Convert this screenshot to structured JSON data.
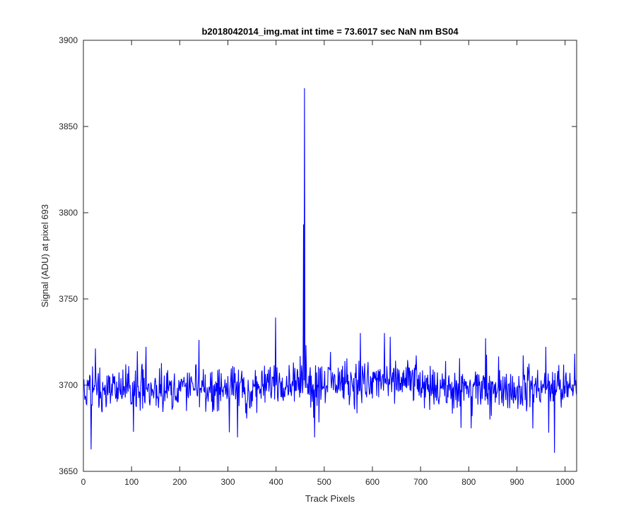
{
  "chart_data": {
    "type": "line",
    "title": "b2018042014_img.mat int time = 73.6017 sec  NaN nm BS04",
    "xlabel": "Track Pixels",
    "ylabel": "Signal (ADU) at pixel 693",
    "xlim": [
      0,
      1024
    ],
    "ylim": [
      3650,
      3900
    ],
    "xticks": [
      "0",
      "100",
      "200",
      "300",
      "400",
      "500",
      "600",
      "700",
      "800",
      "900",
      "1000"
    ],
    "yticks": [
      "3650",
      "3700",
      "3750",
      "3800",
      "3850",
      "3900"
    ],
    "grid": false,
    "legend": "none",
    "series": [
      {
        "color": "#0000ff",
        "baseline": 3698,
        "noise_amplitude": 13,
        "highlighted_points": [
          {
            "x": 16,
            "y": 3663
          },
          {
            "x": 25,
            "y": 3721
          },
          {
            "x": 130,
            "y": 3722
          },
          {
            "x": 240,
            "y": 3726
          },
          {
            "x": 320,
            "y": 3670
          },
          {
            "x": 399,
            "y": 3739
          },
          {
            "x": 457,
            "y": 3793
          },
          {
            "x": 459,
            "y": 3872
          },
          {
            "x": 480,
            "y": 3670
          },
          {
            "x": 575,
            "y": 3730
          },
          {
            "x": 625,
            "y": 3730
          },
          {
            "x": 960,
            "y": 3722
          },
          {
            "x": 978,
            "y": 3661
          },
          {
            "x": 1020,
            "y": 3718
          }
        ]
      }
    ]
  }
}
